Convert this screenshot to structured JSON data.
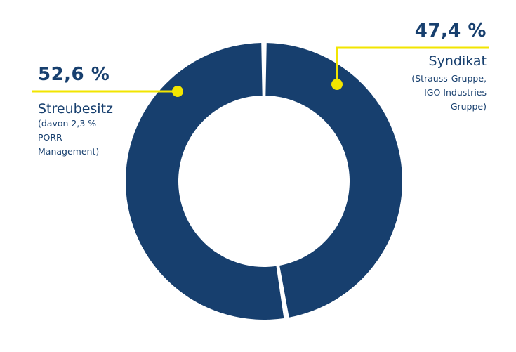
{
  "colors": {
    "ring": "#173f6e",
    "accent": "#f2e500",
    "text": "#173f6e",
    "background": "#ffffff"
  },
  "chart_data": {
    "type": "pie",
    "variant": "donut",
    "labels": [
      "Streubesitz",
      "Syndikat"
    ],
    "values": [
      52.6,
      47.4
    ],
    "value_labels": [
      "52,6 %",
      "47,4 %"
    ],
    "notes": [
      "(davon 2,3 %\nPORR\nManagement)",
      "(Strauss-Gruppe,\nIGO Industries\nGruppe)"
    ]
  }
}
